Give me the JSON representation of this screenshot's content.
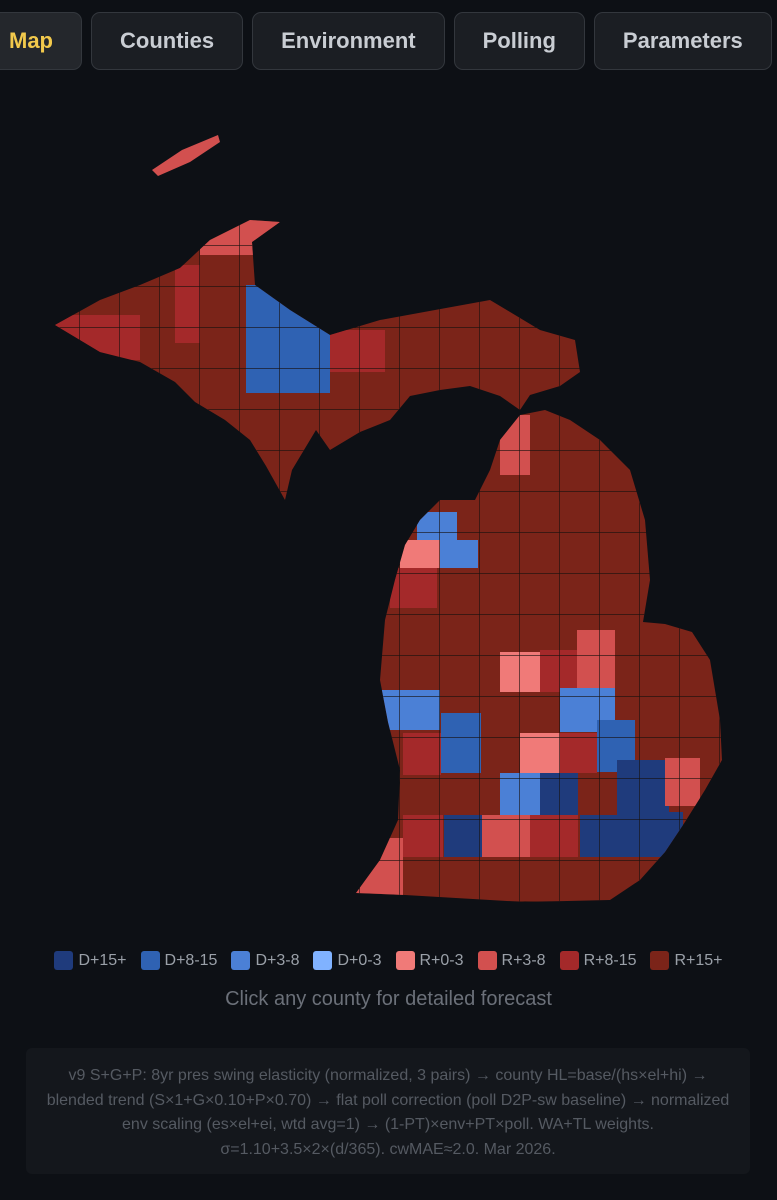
{
  "tabs": [
    "Map",
    "Counties",
    "Environment",
    "Polling",
    "Parameters"
  ],
  "legend": [
    {
      "label": "D+15+",
      "color": "#1f3b7c"
    },
    {
      "label": "D+8-15",
      "color": "#2f62b3"
    },
    {
      "label": "D+3-8",
      "color": "#4b80d6"
    },
    {
      "label": "D+0-3",
      "color": "#80b2ff"
    },
    {
      "label": "R+0-3",
      "color": "#f07a78"
    },
    {
      "label": "R+3-8",
      "color": "#d2504f"
    },
    {
      "label": "R+8-15",
      "color": "#a4292a"
    },
    {
      "label": "R+15+",
      "color": "#7b2419"
    }
  ],
  "hint": "Click any county for detailed forecast",
  "footnote": "v9 S+G+P: 8yr pres swing elasticity (normalized, 3 pairs) → county HL=base/(hs×el+hi) → blended trend (S×1+G×0.10+P×0.70) → flat poll correction (poll D2P-sw baseline) → normalized env scaling (es×el+ei, wtd avg=1) → (1-PT)×env+PT×poll. WA+TL weights. σ=1.10+3.5×2×(d/365). cwMAE≈2.0. Mar 2026."
}
